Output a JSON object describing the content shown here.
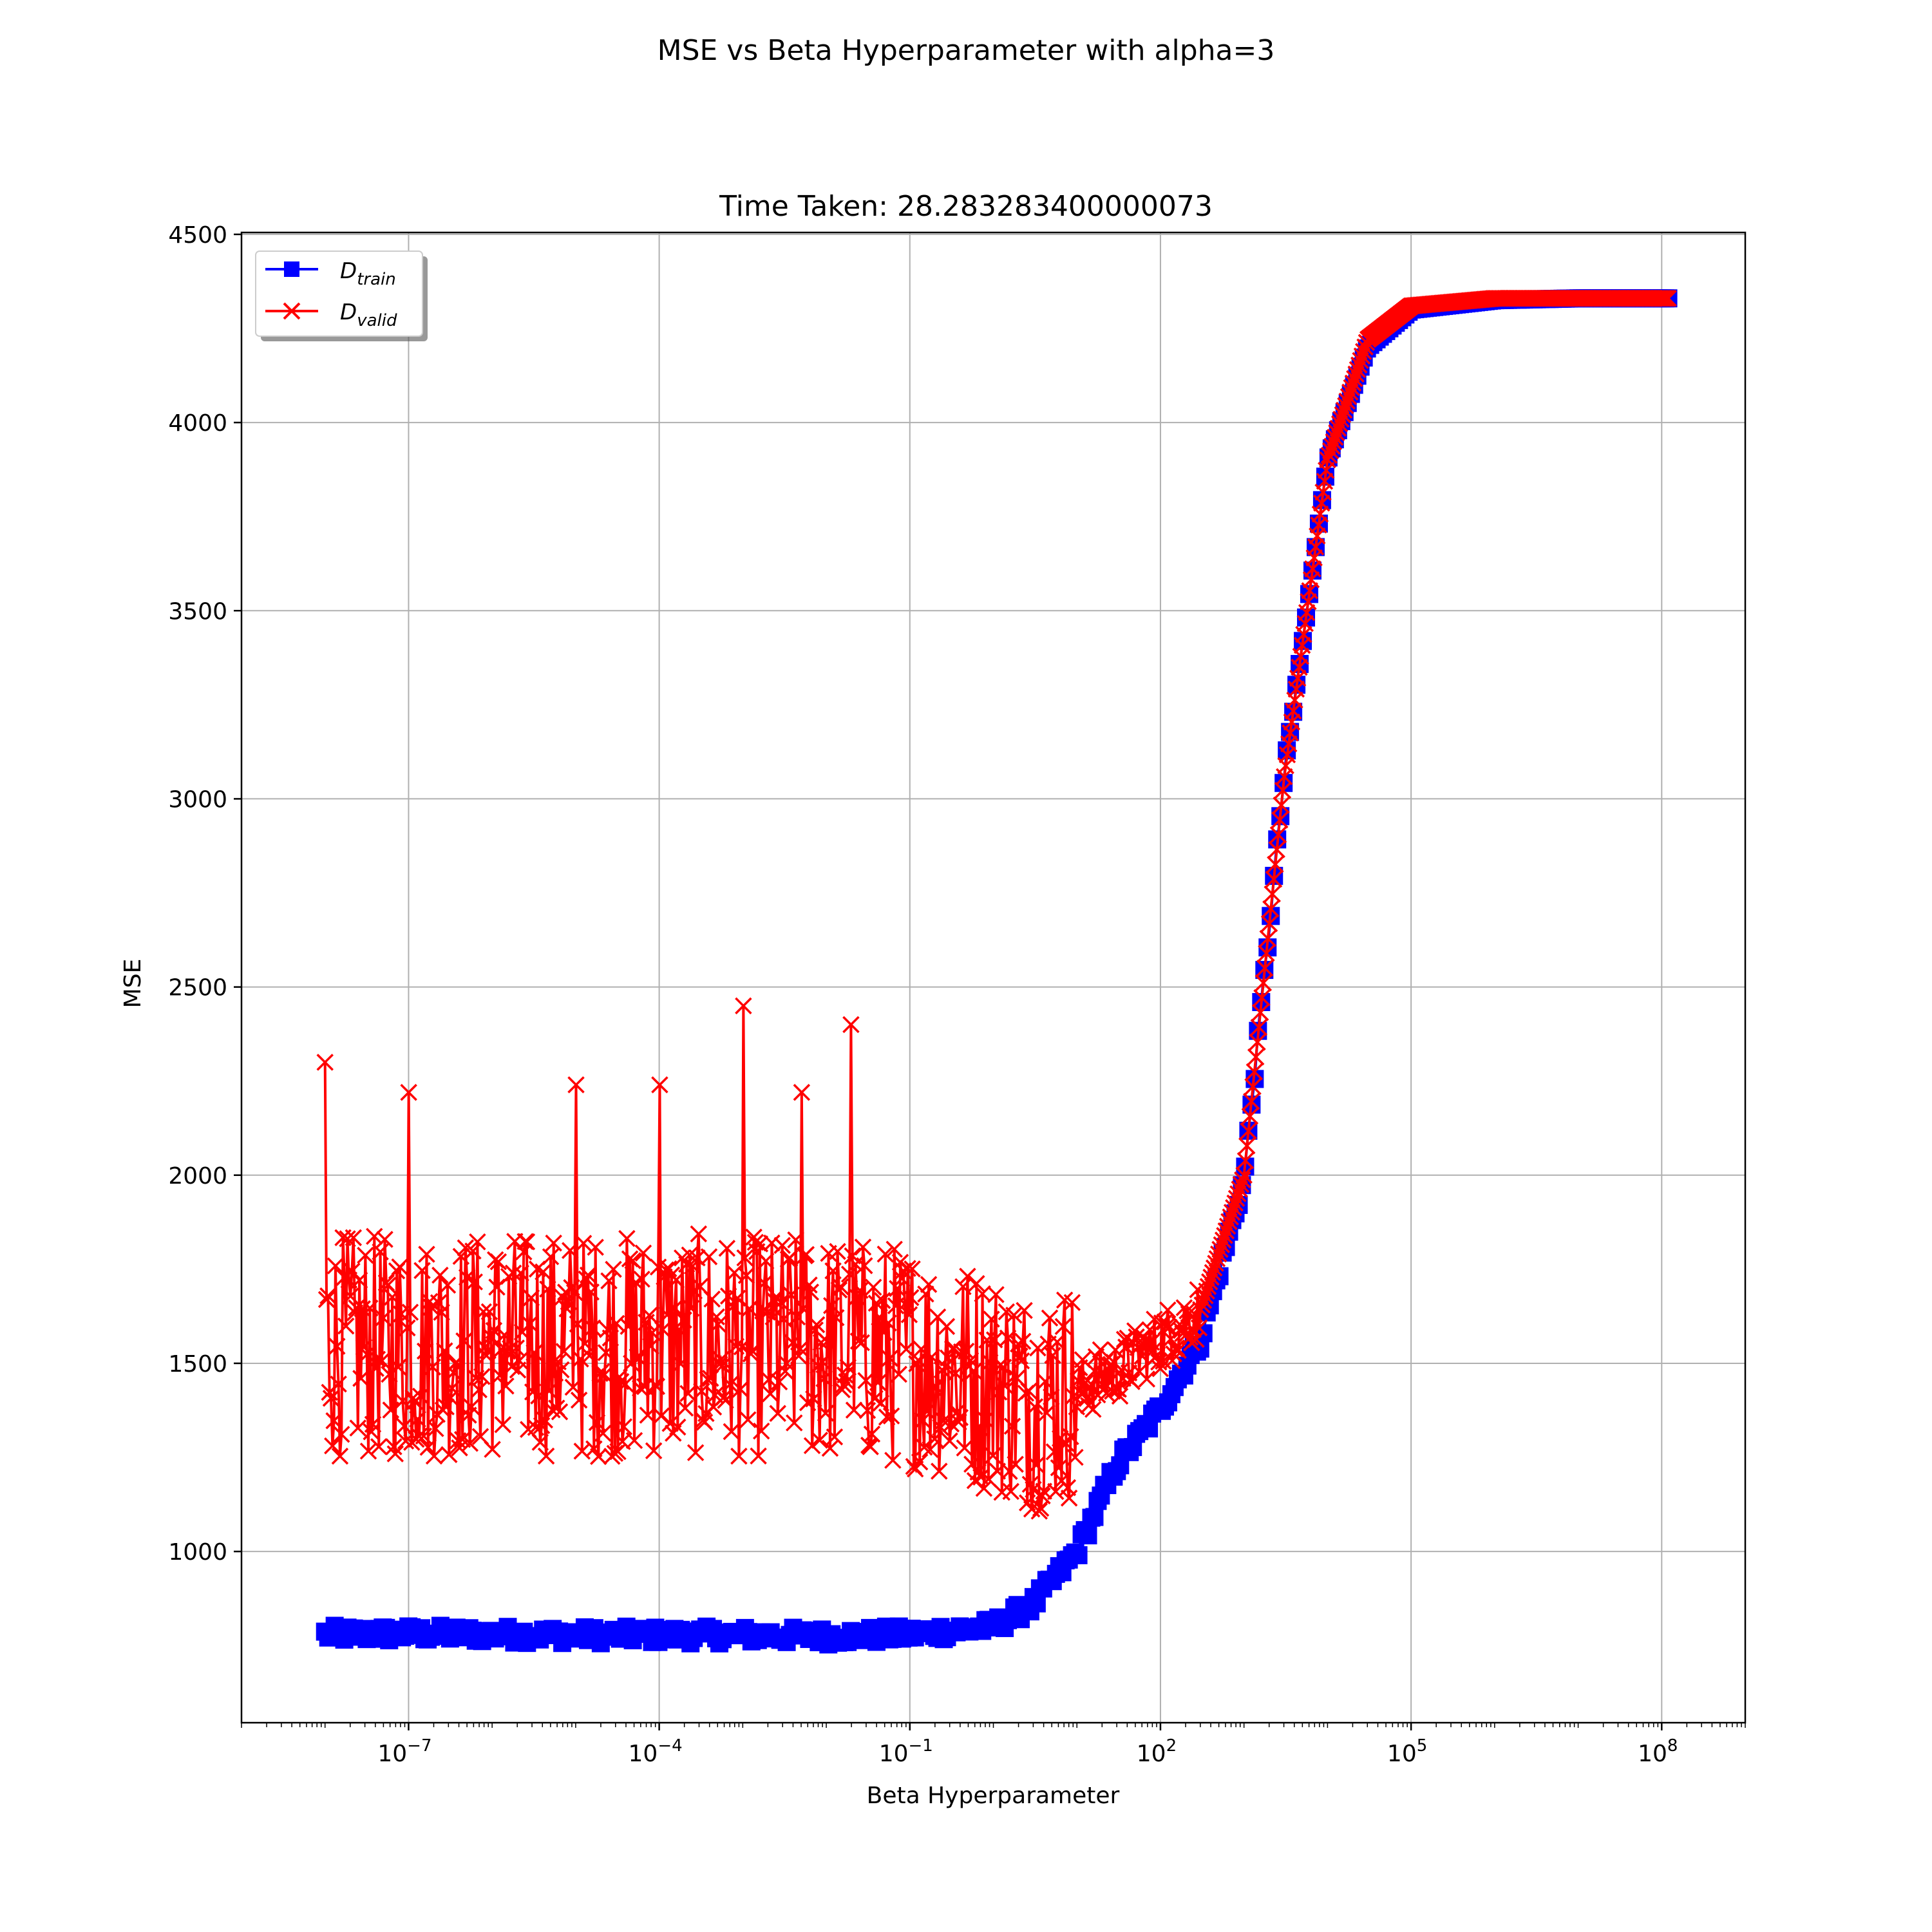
{
  "suptitle": "MSE vs Beta Hyperparameter with alpha=3",
  "chart_data": {
    "type": "line",
    "title": "Time Taken: 28.283283400000073",
    "xlabel": "Beta Hyperparameter",
    "ylabel": "MSE",
    "xscale": "log",
    "xlim": [
      1e-09,
      1000000000.0
    ],
    "ylim": [
      545,
      4505
    ],
    "grid": true,
    "legend_position": "top-left",
    "x_ticks": [
      {
        "exp": "−7",
        "value": 1e-07
      },
      {
        "exp": "−4",
        "value": 0.0001
      },
      {
        "exp": "−1",
        "value": 0.1
      },
      {
        "exp": "2",
        "value": 100.0
      },
      {
        "exp": "5",
        "value": 100000.0
      },
      {
        "exp": "8",
        "value": 100000000.0
      }
    ],
    "y_ticks": [
      {
        "label": "1000",
        "value": 1000
      },
      {
        "label": "1500",
        "value": 1500
      },
      {
        "label": "2000",
        "value": 2000
      },
      {
        "label": "2500",
        "value": 2500
      },
      {
        "label": "3000",
        "value": 3000
      },
      {
        "label": "3500",
        "value": 3500
      },
      {
        "label": "4000",
        "value": 4000
      },
      {
        "label": "4500",
        "value": 4500
      }
    ],
    "series": [
      {
        "legend_main": "D",
        "legend_sub": "train",
        "color": "#0000ff",
        "marker": "square",
        "x": [
          1e-08,
          1e-07,
          1e-06,
          1e-05,
          0.0001,
          0.001,
          0.01,
          0.1,
          1.0,
          3.0,
          10.0,
          30.0,
          100.0,
          300.0,
          1000.0,
          3000.0,
          10000.0,
          30000.0,
          100000.0,
          1000000.0,
          10000000.0,
          120000000.0
        ],
        "y": [
          780,
          782,
          780,
          778,
          778,
          778,
          775,
          780,
          800,
          860,
          1000,
          1230,
          1380,
          1560,
          1990,
          3050,
          3900,
          4200,
          4300,
          4325,
          4330,
          4330
        ]
      },
      {
        "legend_main": "D",
        "legend_sub": "valid",
        "color": "#ff0000",
        "marker": "x",
        "x": [
          1e-08,
          1e-07,
          1e-06,
          1e-05,
          0.0001,
          0.001,
          0.01,
          0.1,
          1.0,
          3.0,
          10.0,
          30.0,
          100.0,
          300.0,
          1000.0,
          3000.0,
          10000.0,
          30000.0,
          100000.0,
          1000000.0,
          10000000.0,
          120000000.0
        ],
        "y": [
          1550,
          1540,
          1550,
          1545,
          1550,
          1545,
          1540,
          1520,
          1450,
          1400,
          1430,
          1480,
          1560,
          1640,
          2000,
          3050,
          3900,
          4220,
          4310,
          4330,
          4330,
          4330
        ],
        "noise_until_x": 10,
        "noise_band": [
          1200,
          1900
        ],
        "annotated_spikes": [
          {
            "x": 1e-08,
            "y": 2300
          },
          {
            "x": 0.001,
            "y": 2450
          },
          {
            "x": 0.02,
            "y": 2400
          },
          {
            "x": 0.0001,
            "y": 2240
          },
          {
            "x": 1e-05,
            "y": 2240
          },
          {
            "x": 1e-07,
            "y": 2220
          },
          {
            "x": 0.005,
            "y": 2220
          }
        ]
      }
    ]
  }
}
